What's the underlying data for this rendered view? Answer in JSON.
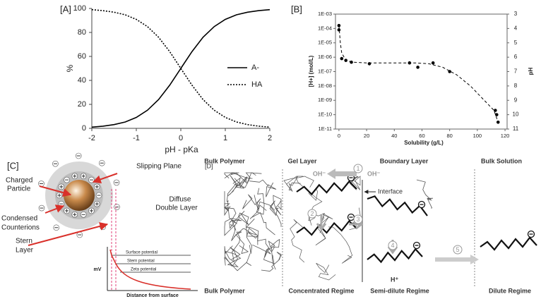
{
  "chart_data": [
    {
      "type": "line",
      "panel": "[A]",
      "xlabel": "pH - pKa",
      "ylabel": "%",
      "x": [
        -2,
        -1.75,
        -1.5,
        -1.25,
        -1,
        -0.75,
        -0.5,
        -0.25,
        0,
        0.25,
        0.5,
        0.75,
        1,
        1.25,
        1.5,
        1.75,
        2
      ],
      "series": [
        {
          "name": "A-",
          "color": "#000000",
          "dash": "solid",
          "values": [
            1.0,
            1.8,
            3.1,
            5.3,
            9.1,
            15.1,
            24.0,
            36.0,
            50.0,
            64.0,
            76.0,
            84.9,
            90.9,
            94.7,
            96.9,
            98.2,
            99.0
          ]
        },
        {
          "name": "HA",
          "color": "#000000",
          "dash": "dotted",
          "values": [
            99.0,
            98.2,
            96.9,
            94.7,
            90.9,
            84.9,
            76.0,
            64.0,
            50.0,
            36.0,
            24.0,
            15.1,
            9.1,
            5.3,
            3.1,
            1.8,
            1.0
          ]
        }
      ],
      "xlim": [
        -2,
        2
      ],
      "xticks": [
        -2,
        -1,
        0,
        1,
        2
      ],
      "ylim": [
        0,
        100
      ],
      "yticks": [
        0,
        20,
        40,
        60,
        80,
        100
      ],
      "grid": false,
      "legend": "right"
    },
    {
      "type": "scatter",
      "panel": "[B]",
      "xlabel": "Solubility (g/L)",
      "ylabel": "[H+] (mol/L)",
      "y2label": "pH",
      "ylog": true,
      "grid": false,
      "x": [
        0,
        0,
        2,
        5,
        9,
        22,
        51,
        57,
        68,
        80,
        113,
        114,
        115
      ],
      "series": [
        {
          "color": "#000000",
          "values": [
            0.00016,
            8e-05,
            8e-07,
            6e-07,
            4.5e-07,
            3.5e-07,
            4e-07,
            2e-07,
            4e-07,
            1e-07,
            2e-10,
            1e-10,
            3e-11
          ]
        }
      ],
      "trend": {
        "color": "#000000",
        "dash": "dashed",
        "x": [
          0,
          1,
          2,
          5,
          10,
          20,
          40,
          55,
          65,
          75,
          85,
          95,
          105,
          112,
          115
        ],
        "values": [
          0.00016,
          1e-05,
          2e-06,
          6e-07,
          4.5e-07,
          4e-07,
          4e-07,
          4e-07,
          3.5e-07,
          2e-07,
          6e-08,
          1e-08,
          1e-09,
          2e-10,
          3e-11
        ]
      },
      "xlim": [
        -2.5,
        121.5
      ],
      "xticks": [
        0,
        20,
        40,
        60,
        80,
        100,
        120
      ],
      "ylim": [
        1e-11,
        0.001
      ],
      "yticks": [
        {
          "value": 1e-11,
          "label": "1E-11"
        },
        {
          "value": 1e-10,
          "label": "1E-10"
        },
        {
          "value": 1e-09,
          "label": "1E-09"
        },
        {
          "value": 1e-08,
          "label": "1E-08"
        },
        {
          "value": 1e-07,
          "label": "1E-07"
        },
        {
          "value": 1e-06,
          "label": "1E-06"
        },
        {
          "value": 1e-05,
          "label": "1E-05"
        },
        {
          "value": 0.0001,
          "label": "1E-04"
        },
        {
          "value": 0.001,
          "label": "1E-03"
        }
      ],
      "y2lim": [
        11,
        3
      ],
      "y2ticks": [
        3,
        4,
        5,
        6,
        7,
        8,
        9,
        10,
        11
      ]
    }
  ],
  "panel_c": {
    "label": "[C]",
    "slipping_plane": "Slipping Plane",
    "charged_particle": [
      "Charged",
      "Particle"
    ],
    "diffuse": [
      "Diffuse",
      "Double Layer"
    ],
    "condensed": [
      "Condensed",
      "Counterions"
    ],
    "stern": [
      "Stern",
      "Layer"
    ],
    "surface_potential": "Surface potential",
    "stern_potential": "Stern potential",
    "zeta_potential": "Zeta potential",
    "y_axis": "mV",
    "x_axis": "Distance from surface"
  },
  "panel_d": {
    "label": "[D]",
    "top": [
      "Bulk Polymer",
      "Gel Layer",
      "Boundary Layer",
      "Bulk Solution"
    ],
    "bottom": [
      "Bulk Polymer",
      "Concentrated Regime",
      "Semi-dilute Regime",
      "Dilute Regime"
    ],
    "oh": [
      "OH⁻",
      "OH⁻"
    ],
    "interface": "Interface",
    "h": "H⁺",
    "steps": [
      "1",
      "2",
      "3",
      "4",
      "5"
    ]
  }
}
